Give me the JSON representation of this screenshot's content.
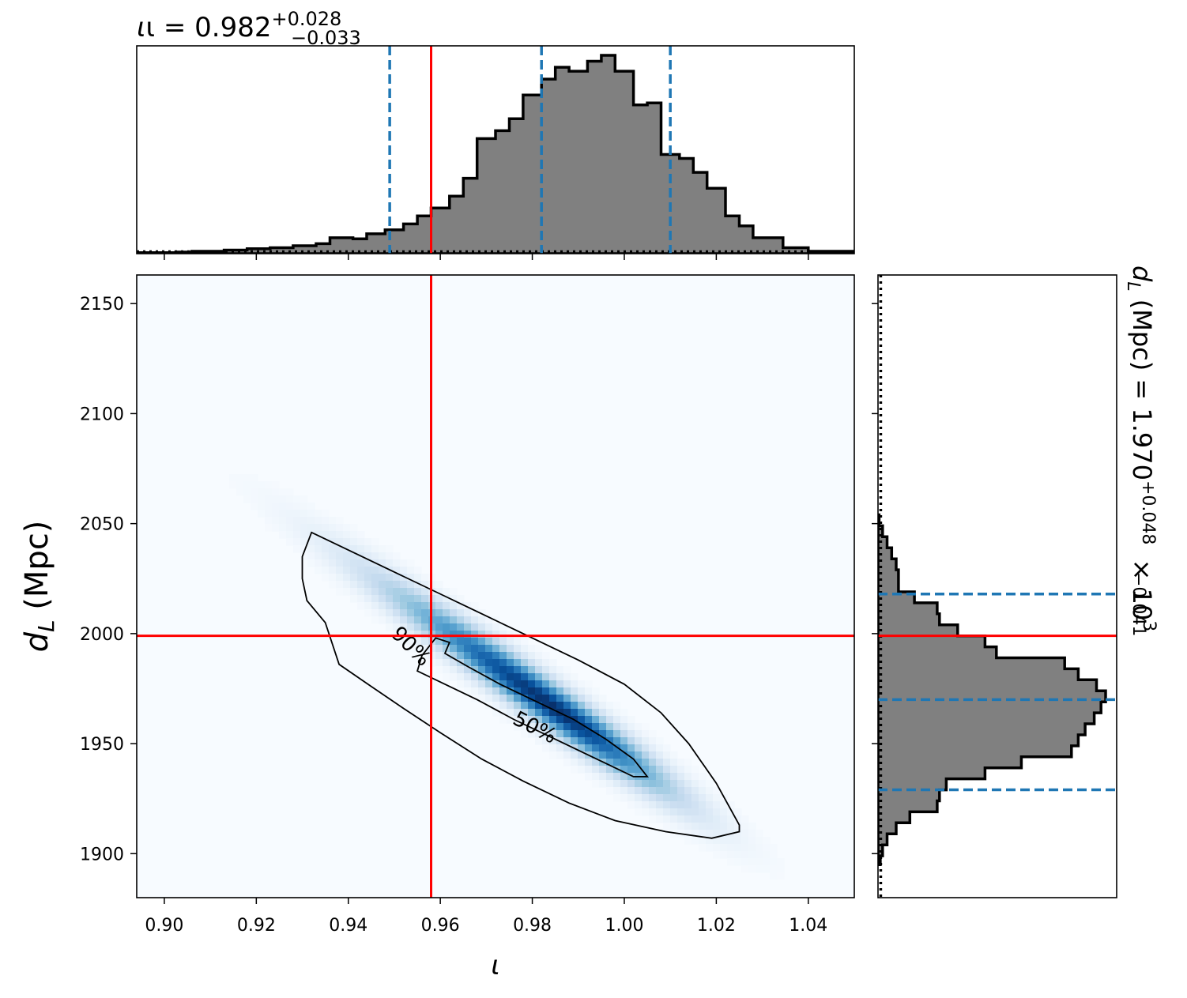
{
  "chart_data": {
    "type": "corner",
    "parameters": [
      {
        "symbol": "ι",
        "axis_label": "ι",
        "summary": {
          "median": "0.982",
          "plus": "+0.028",
          "minus": "−0.033",
          "prefix": "ι = "
        },
        "range": [
          0.894,
          1.05
        ],
        "ticks": [
          0.9,
          0.92,
          0.94,
          0.96,
          0.98,
          1.0,
          1.02,
          1.04
        ],
        "tick_labels": [
          "0.90",
          "0.92",
          "0.94",
          "0.96",
          "0.98",
          "1.00",
          "1.02",
          "1.04"
        ],
        "quantiles": [
          0.949,
          0.982,
          1.01
        ],
        "truth": 0.958,
        "histogram": {
          "bin_edges": [
            0.894,
            0.9025,
            0.906,
            0.913,
            0.918,
            0.923,
            0.928,
            0.933,
            0.936,
            0.941,
            0.944,
            0.948,
            0.952,
            0.955,
            0.958,
            0.962,
            0.965,
            0.968,
            0.972,
            0.975,
            0.978,
            0.982,
            0.985,
            0.988,
            0.992,
            0.995,
            0.998,
            1.002,
            1.005,
            1.008,
            1.012,
            1.015,
            1.018,
            1.022,
            1.025,
            1.028,
            1.0345,
            1.04,
            1.05
          ],
          "heights": [
            0.005,
            0.008,
            0.012,
            0.018,
            0.025,
            0.03,
            0.04,
            0.05,
            0.08,
            0.075,
            0.1,
            0.12,
            0.15,
            0.19,
            0.23,
            0.29,
            0.38,
            0.58,
            0.62,
            0.68,
            0.8,
            0.88,
            0.94,
            0.92,
            0.97,
            1.0,
            0.92,
            0.75,
            0.76,
            0.5,
            0.48,
            0.41,
            0.33,
            0.19,
            0.14,
            0.08,
            0.03,
            0.012
          ],
          "reference_height": 0.01
        }
      },
      {
        "symbol": "d_L",
        "axis_label": "d",
        "axis_label_sub": "L",
        "axis_label_unit": " (Mpc)",
        "summary": {
          "median": "1.970",
          "plus": "+0.048",
          "minus": "−0.041",
          "prefix": " (Mpc) = ",
          "suffix": " × 10",
          "exponent": "3"
        },
        "range": [
          1880,
          2163
        ],
        "ticks": [
          1900,
          1950,
          2000,
          2050,
          2100,
          2150
        ],
        "tick_labels": [
          "1900",
          "1950",
          "2000",
          "2050",
          "2100",
          "2150"
        ],
        "quantiles": [
          1929,
          1970,
          2018
        ],
        "truth": 1999,
        "histogram": {
          "bin_edges": [
            1895,
            1899,
            1904,
            1909,
            1914,
            1919,
            1924,
            1929,
            1934,
            1939,
            1944,
            1949,
            1954,
            1959,
            1964,
            1969,
            1974,
            1979,
            1984,
            1989,
            1994,
            1999,
            2004,
            2009,
            2014,
            2019,
            2024,
            2029,
            2034,
            2039,
            2044,
            2049,
            2054
          ],
          "heights": [
            0.01,
            0.02,
            0.04,
            0.08,
            0.14,
            0.26,
            0.27,
            0.3,
            0.47,
            0.63,
            0.85,
            0.88,
            0.91,
            0.95,
            0.98,
            1.0,
            0.96,
            0.88,
            0.82,
            0.52,
            0.47,
            0.35,
            0.27,
            0.26,
            0.16,
            0.09,
            0.09,
            0.08,
            0.06,
            0.04,
            0.02,
            0.005
          ],
          "reference_height": 0.005
        }
      }
    ],
    "joint": {
      "colormap": "Blues",
      "density_axis": {
        "start": [
          0.926,
          2055
        ],
        "end": [
          1.03,
          1898
        ]
      },
      "peak": [
        0.985,
        1966
      ],
      "contours": [
        {
          "label": "50%",
          "label_pos": [
            0.9805,
            1957
          ],
          "label_angle_deg": 27,
          "points": [
            [
              0.962,
              1996
            ],
            [
              0.961,
              1991
            ],
            [
              0.966,
              1985
            ],
            [
              0.973,
              1977
            ],
            [
              0.981,
              1969
            ],
            [
              0.989,
              1961
            ],
            [
              0.996,
              1952
            ],
            [
              1.002,
              1943
            ],
            [
              1.005,
              1935
            ],
            [
              1.002,
              1935
            ],
            [
              0.993,
              1944
            ],
            [
              0.984,
              1953
            ],
            [
              0.976,
              1961
            ],
            [
              0.968,
              1970
            ],
            [
              0.962,
              1976
            ],
            [
              0.955,
              1983
            ],
            [
              0.956,
              1990
            ],
            [
              0.959,
              1998
            ]
          ]
        },
        {
          "label": "90%",
          "label_pos": [
            0.9535,
            1994
          ],
          "label_angle_deg": 45,
          "points": [
            [
              0.932,
              2046
            ],
            [
              0.936,
              2042
            ],
            [
              0.944,
              2034
            ],
            [
              0.952,
              2026
            ],
            [
              0.961,
              2017
            ],
            [
              0.97,
              2008
            ],
            [
              0.98,
              1998
            ],
            [
              0.99,
              1988
            ],
            [
              1.0,
              1977
            ],
            [
              1.008,
              1964
            ],
            [
              1.014,
              1950
            ],
            [
              1.02,
              1932
            ],
            [
              1.025,
              1913
            ],
            [
              1.025,
              1910
            ],
            [
              1.019,
              1907
            ],
            [
              1.009,
              1910
            ],
            [
              0.998,
              1915
            ],
            [
              0.988,
              1923
            ],
            [
              0.978,
              1933
            ],
            [
              0.969,
              1943
            ],
            [
              0.96,
              1955
            ],
            [
              0.952,
              1966
            ],
            [
              0.945,
              1976
            ],
            [
              0.938,
              1986
            ],
            [
              0.935,
              2005
            ],
            [
              0.931,
              2015
            ],
            [
              0.93,
              2025
            ],
            [
              0.93,
              2035
            ]
          ]
        }
      ]
    }
  }
}
